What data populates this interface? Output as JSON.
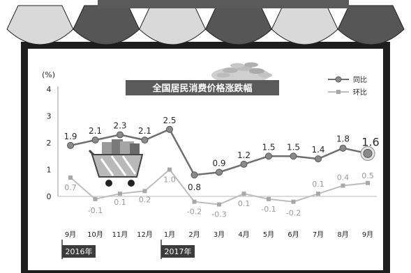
{
  "chart_data": {
    "type": "line",
    "title": "全国居民消费价格涨跌幅",
    "ylabel": "(%)",
    "ylim": [
      0,
      4
    ],
    "yticks": [
      0,
      1,
      2,
      3,
      4
    ],
    "categories": [
      "9月",
      "10月",
      "11月",
      "12月",
      "1月",
      "2月",
      "3月",
      "4月",
      "5月",
      "6月",
      "7月",
      "8月",
      "9月"
    ],
    "year_labels": [
      {
        "label": "2016年",
        "category_index": 0
      },
      {
        "label": "2017年",
        "category_index": 4
      }
    ],
    "series": [
      {
        "name": "同比",
        "values": [
          1.9,
          2.1,
          2.3,
          2.1,
          2.5,
          0.8,
          0.9,
          1.2,
          1.5,
          1.5,
          1.4,
          1.8,
          1.6
        ],
        "labels": [
          "1.9",
          "2.1",
          "2.3",
          "2.1",
          "2.5",
          "0.8",
          "0.9",
          "1.2",
          "1.5",
          "1.5",
          "1.4",
          "1.8",
          "1.6"
        ]
      },
      {
        "name": "环比",
        "values": [
          0.7,
          -0.1,
          0.1,
          0.2,
          1.0,
          -0.2,
          -0.3,
          0.1,
          -0.1,
          -0.2,
          0.1,
          0.4,
          0.5
        ],
        "labels": [
          "0.7",
          "-0.1",
          "0.1",
          "0.2",
          "1.0",
          "-0.2",
          "-0.3",
          "0.1",
          "-0.1",
          "-0.2",
          "0.1",
          "0.4",
          "0.5"
        ]
      }
    ],
    "grid": false,
    "legend_position": "top-right"
  },
  "colors": {
    "yoy_line": "#6f6f6f",
    "yoy_marker": "#8a8a8a",
    "mom_line": "#bdbdbd",
    "mom_marker": "#a8a8a8",
    "title_band": "#5a5a5a",
    "awning_dark": "#565656",
    "awning_light": "#d9d9d9",
    "frame": "#1e1e1e",
    "year_tag": "#3c3c3c"
  }
}
